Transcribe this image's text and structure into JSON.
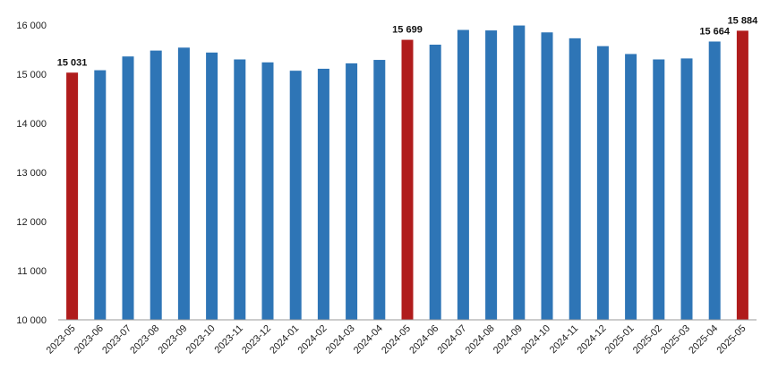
{
  "chart_data": {
    "type": "bar",
    "title": "",
    "xlabel": "",
    "ylabel": "",
    "ylim": [
      10000,
      16000
    ],
    "yticks": [
      10000,
      11000,
      12000,
      13000,
      14000,
      15000,
      16000
    ],
    "ytick_labels": [
      "10 000",
      "11 000",
      "12 000",
      "13 000",
      "14 000",
      "15 000",
      "16 000"
    ],
    "grid": false,
    "categories": [
      "2023-05",
      "2023-06",
      "2023-07",
      "2023-08",
      "2023-09",
      "2023-10",
      "2023-11",
      "2023-12",
      "2024-01",
      "2024-02",
      "2024-03",
      "2024-04",
      "2024-05",
      "2024-06",
      "2024-07",
      "2024-08",
      "2024-09",
      "2024-10",
      "2024-11",
      "2024-12",
      "2025-01",
      "2025-02",
      "2025-03",
      "2025-04",
      "2025-05"
    ],
    "values": [
      15031,
      15080,
      15360,
      15480,
      15540,
      15440,
      15300,
      15240,
      15070,
      15110,
      15220,
      15290,
      15699,
      15600,
      15900,
      15890,
      15990,
      15850,
      15730,
      15570,
      15410,
      15300,
      15320,
      15664,
      15884
    ],
    "highlighted": [
      0,
      12,
      24
    ],
    "data_labels": [
      {
        "index": 0,
        "text": "15 031"
      },
      {
        "index": 12,
        "text": "15 699"
      },
      {
        "index": 23,
        "text": "15 664"
      },
      {
        "index": 24,
        "text": "15 884"
      }
    ],
    "colors": {
      "bar": "#2E75B6",
      "highlight": "#B01C1C",
      "axis": "#999999"
    }
  }
}
